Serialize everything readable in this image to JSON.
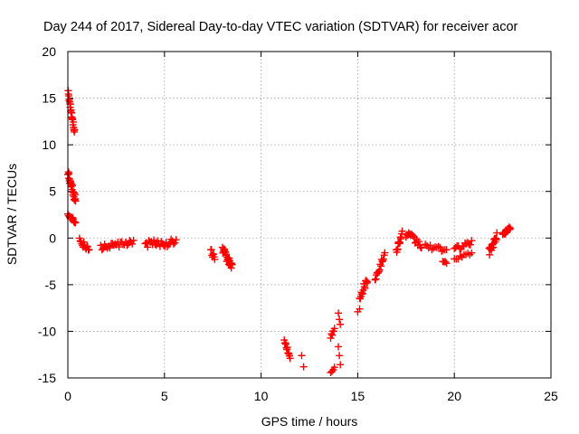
{
  "chart_data": {
    "type": "scatter",
    "title": "Day 244 of 2017, Sidereal Day-to-day VTEC variation (SDTVAR) for receiver acor",
    "xlabel": "GPS time / hours",
    "ylabel": "SDTVAR / TECUs",
    "xlim": [
      0,
      25
    ],
    "ylim": [
      -15,
      20
    ],
    "xticks": [
      0,
      5,
      10,
      15,
      20,
      25
    ],
    "yticks": [
      -15,
      -10,
      -5,
      0,
      5,
      10,
      15,
      20
    ],
    "xtick_labels": [
      "0",
      "5",
      "10",
      "15",
      "20",
      "25"
    ],
    "ytick_labels": [
      "-15",
      "-10",
      "-5",
      "0",
      "5",
      "10",
      "15",
      "20"
    ],
    "grid": true,
    "marker": "plus",
    "series_color": "#ff0000",
    "segments": [
      {
        "x0": 0.02,
        "x1": 0.35,
        "y0": 15.5,
        "y1": 11.3,
        "n": 24,
        "noise": 0.35
      },
      {
        "x0": 0.0,
        "x1": 0.4,
        "y0": 7.0,
        "y1": 4.0,
        "n": 28,
        "noise": 0.5
      },
      {
        "x0": 0.0,
        "x1": 0.4,
        "y0": 2.6,
        "y1": 1.7,
        "n": 14,
        "noise": 0.25
      },
      {
        "x0": 0.6,
        "x1": 1.1,
        "y0": -0.3,
        "y1": -1.3,
        "n": 14,
        "noise": 0.35
      },
      {
        "x0": 1.7,
        "x1": 3.4,
        "y0": -1.0,
        "y1": -0.5,
        "n": 26,
        "noise": 0.3
      },
      {
        "x0": 4.0,
        "x1": 5.6,
        "y0": -0.6,
        "y1": -0.5,
        "n": 26,
        "noise": 0.4
      },
      {
        "x0": 7.4,
        "x1": 7.6,
        "y0": -1.4,
        "y1": -2.3,
        "n": 8,
        "noise": 0.3
      },
      {
        "x0": 8.0,
        "x1": 8.5,
        "y0": -1.2,
        "y1": -3.2,
        "n": 24,
        "noise": 0.45
      },
      {
        "x0": 11.2,
        "x1": 11.5,
        "y0": -11.0,
        "y1": -12.5,
        "n": 12,
        "noise": 0.4
      },
      {
        "x0": 12.1,
        "x1": 12.2,
        "y0": -12.6,
        "y1": -13.8,
        "n": 2,
        "noise": 0.0
      },
      {
        "x0": 13.6,
        "x1": 13.8,
        "y0": -10.5,
        "y1": -9.8,
        "n": 6,
        "noise": 0.25
      },
      {
        "x0": 13.6,
        "x1": 13.8,
        "y0": -14.4,
        "y1": -13.9,
        "n": 4,
        "noise": 0.15
      },
      {
        "x0": 14.0,
        "x1": 14.1,
        "y0": -8.1,
        "y1": -9.3,
        "n": 3,
        "noise": 0.1
      },
      {
        "x0": 14.0,
        "x1": 14.1,
        "y0": -11.6,
        "y1": -13.5,
        "n": 3,
        "noise": 0.1
      },
      {
        "x0": 15.0,
        "x1": 15.1,
        "y0": -7.9,
        "y1": -7.6,
        "n": 2,
        "noise": 0.0
      },
      {
        "x0": 15.1,
        "x1": 15.5,
        "y0": -6.2,
        "y1": -4.4,
        "n": 14,
        "noise": 0.45
      },
      {
        "x0": 15.9,
        "x1": 16.4,
        "y0": -4.3,
        "y1": -1.8,
        "n": 16,
        "noise": 0.35
      },
      {
        "x0": 17.0,
        "x1": 17.3,
        "y0": -1.3,
        "y1": 0.5,
        "n": 14,
        "noise": 0.35
      },
      {
        "x0": 17.5,
        "x1": 18.3,
        "y0": 0.4,
        "y1": -0.8,
        "n": 18,
        "noise": 0.45
      },
      {
        "x0": 18.5,
        "x1": 19.6,
        "y0": -0.9,
        "y1": -1.3,
        "n": 14,
        "noise": 0.25
      },
      {
        "x0": 19.4,
        "x1": 19.6,
        "y0": -2.4,
        "y1": -2.7,
        "n": 4,
        "noise": 0.15
      },
      {
        "x0": 20.0,
        "x1": 20.9,
        "y0": -1.2,
        "y1": -0.5,
        "n": 14,
        "noise": 0.25
      },
      {
        "x0": 20.0,
        "x1": 20.9,
        "y0": -2.2,
        "y1": -1.6,
        "n": 10,
        "noise": 0.2
      },
      {
        "x0": 21.8,
        "x1": 22.2,
        "y0": -1.5,
        "y1": 0.2,
        "n": 18,
        "noise": 0.4
      },
      {
        "x0": 22.5,
        "x1": 22.9,
        "y0": 0.4,
        "y1": 1.1,
        "n": 14,
        "noise": 0.25
      }
    ]
  }
}
